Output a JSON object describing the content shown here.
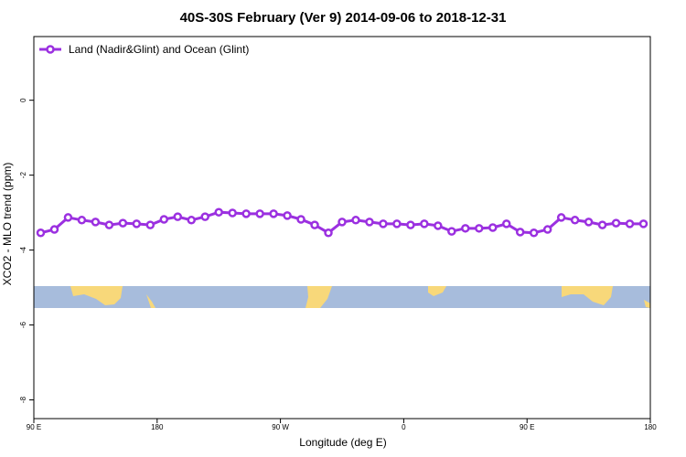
{
  "chart_data": {
    "type": "line",
    "title": "40S-30S February (Ver 9)   2014-09-06 to 2018-12-31",
    "x_label": "Longitude (deg E)",
    "y_label": "XCO2 - MLO trend (ppm)",
    "x": [
      95,
      105,
      115,
      125,
      135,
      145,
      155,
      165,
      175,
      185,
      195,
      205,
      215,
      225,
      235,
      245,
      255,
      265,
      275,
      285,
      295,
      305,
      315,
      325,
      335,
      345,
      355,
      365,
      375,
      385,
      395,
      405,
      415,
      425,
      435,
      445,
      455,
      465,
      475,
      485,
      495,
      505,
      515,
      525,
      535
    ],
    "series": [
      {
        "name": "Land (Nadir&Glint) and Ocean (Glint)",
        "color": "#9b30e0",
        "values": [
          -3.54,
          -3.45,
          -3.13,
          -3.2,
          -3.25,
          -3.33,
          -3.28,
          -3.3,
          -3.33,
          -3.18,
          -3.11,
          -3.2,
          -3.11,
          -2.99,
          -3.01,
          -3.03,
          -3.03,
          -3.03,
          -3.08,
          -3.18,
          -3.33,
          -3.54,
          -3.25,
          -3.2,
          -3.25,
          -3.3,
          -3.3,
          -3.33,
          -3.3,
          -3.35,
          -3.5,
          -3.42,
          -3.42,
          -3.4,
          -3.3,
          -3.52,
          -3.54,
          -3.45,
          -3.13,
          -3.2,
          -3.25,
          -3.33,
          -3.28,
          -3.3,
          -3.3
        ]
      }
    ],
    "xlim": [
      90,
      540
    ],
    "xticks": [
      {
        "value": 90,
        "label": "90 E"
      },
      180,
      {
        "value": 270,
        "label": "90 W"
      },
      {
        "value": 360,
        "label": "0"
      },
      {
        "value": 450,
        "label": "90 E"
      },
      {
        "value": 540,
        "label": "180"
      }
    ],
    "ylim": [
      -8.5,
      1.7
    ],
    "yticks": [
      0,
      -2,
      -4,
      -6,
      -8
    ],
    "legend": "top-left"
  }
}
